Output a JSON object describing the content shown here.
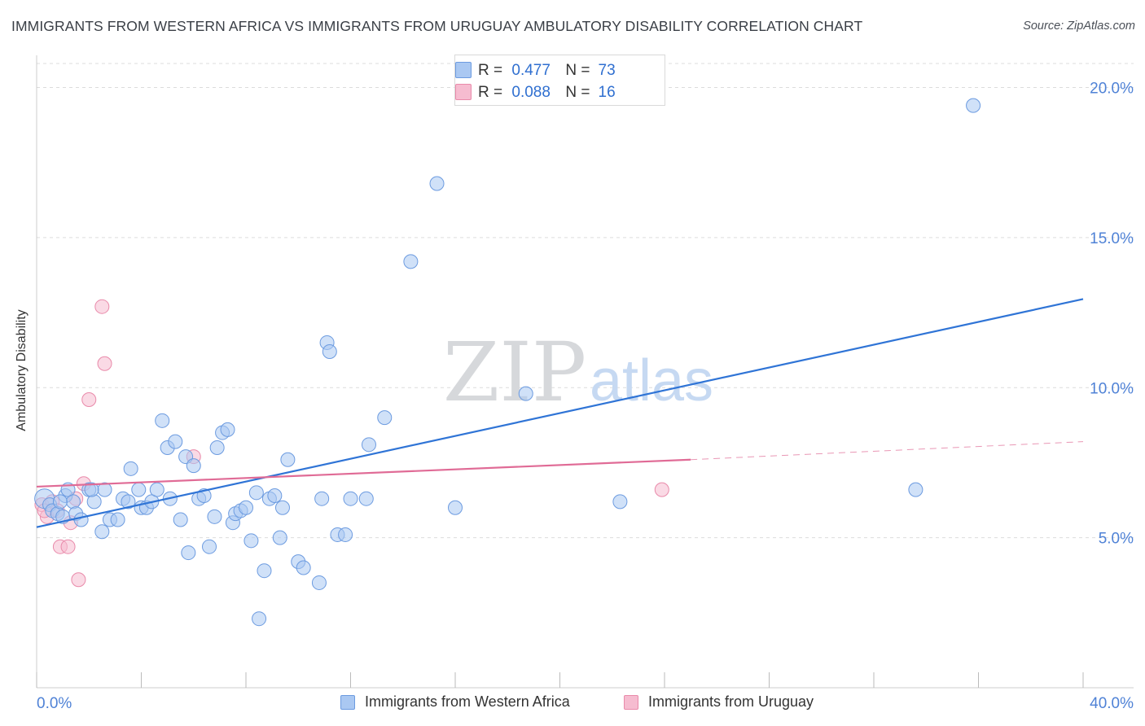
{
  "title": "IMMIGRANTS FROM WESTERN AFRICA VS IMMIGRANTS FROM URUGUAY AMBULATORY DISABILITY CORRELATION CHART",
  "source": "Source: ZipAtlas.com",
  "watermark": {
    "zip": "ZIP",
    "atlas": "atlas"
  },
  "colors": {
    "blue_fill": "#aac8f2",
    "blue_stroke": "#6c9be0",
    "blue_line": "#2f74d6",
    "pink_fill": "#f6bcd0",
    "pink_stroke": "#e98aaa",
    "pink_line": "#e06b96",
    "axis_text": "#4f82d6",
    "grid": "#dcdcdc"
  },
  "stats": {
    "r_label": "R =",
    "n_label": "N =",
    "series1": {
      "r": "0.477",
      "n": "73"
    },
    "series2": {
      "r": "0.088",
      "n": "16"
    }
  },
  "chart_data": {
    "type": "scatter",
    "title": "IMMIGRANTS FROM WESTERN AFRICA VS IMMIGRANTS FROM URUGUAY AMBULATORY DISABILITY CORRELATION CHART",
    "xlabel": "",
    "ylabel": "Ambulatory Disability",
    "xlim": [
      0,
      40
    ],
    "ylim": [
      0,
      20.8
    ],
    "x_tick_labels": [
      "0.0%",
      "40.0%"
    ],
    "y_ticks": [
      5,
      10,
      15,
      20
    ],
    "y_tick_labels": [
      "5.0%",
      "10.0%",
      "15.0%",
      "20.0%"
    ],
    "grid": true,
    "legend_position": "bottom",
    "series": [
      {
        "name": "Immigrants from Western Africa",
        "color": "#aac8f2",
        "trend": {
          "x": [
            0,
            40
          ],
          "y": [
            5.35,
            12.95
          ]
        },
        "points": [
          [
            0.3,
            6.3
          ],
          [
            0.5,
            6.1
          ],
          [
            0.6,
            5.9
          ],
          [
            0.8,
            5.8
          ],
          [
            1.0,
            5.7
          ],
          [
            1.1,
            6.4
          ],
          [
            1.2,
            6.6
          ],
          [
            1.4,
            6.2
          ],
          [
            1.5,
            5.8
          ],
          [
            1.7,
            5.6
          ],
          [
            2.0,
            6.6
          ],
          [
            2.2,
            6.2
          ],
          [
            2.5,
            5.2
          ],
          [
            2.6,
            6.6
          ],
          [
            2.8,
            5.6
          ],
          [
            3.1,
            5.6
          ],
          [
            3.3,
            6.3
          ],
          [
            3.5,
            6.2
          ],
          [
            3.6,
            7.3
          ],
          [
            3.9,
            6.6
          ],
          [
            4.0,
            6.0
          ],
          [
            4.2,
            6.0
          ],
          [
            4.4,
            6.2
          ],
          [
            4.6,
            6.6
          ],
          [
            4.8,
            8.9
          ],
          [
            5.0,
            8.0
          ],
          [
            5.1,
            6.3
          ],
          [
            5.3,
            8.2
          ],
          [
            5.5,
            5.6
          ],
          [
            5.7,
            7.7
          ],
          [
            5.8,
            4.5
          ],
          [
            6.0,
            7.4
          ],
          [
            6.2,
            6.3
          ],
          [
            6.4,
            6.4
          ],
          [
            6.6,
            4.7
          ],
          [
            6.8,
            5.7
          ],
          [
            6.9,
            8.0
          ],
          [
            7.1,
            8.5
          ],
          [
            7.3,
            8.6
          ],
          [
            7.5,
            5.5
          ],
          [
            7.6,
            5.8
          ],
          [
            7.8,
            5.9
          ],
          [
            8.0,
            6.0
          ],
          [
            8.2,
            4.9
          ],
          [
            8.4,
            6.5
          ],
          [
            8.7,
            3.9
          ],
          [
            8.9,
            6.3
          ],
          [
            9.1,
            6.4
          ],
          [
            9.3,
            5.0
          ],
          [
            9.4,
            6.0
          ],
          [
            9.6,
            7.6
          ],
          [
            10.0,
            4.2
          ],
          [
            10.2,
            4.0
          ],
          [
            10.8,
            3.5
          ],
          [
            10.9,
            6.3
          ],
          [
            11.1,
            11.5
          ],
          [
            11.2,
            11.2
          ],
          [
            11.5,
            5.1
          ],
          [
            11.8,
            5.1
          ],
          [
            12.0,
            6.3
          ],
          [
            12.6,
            6.3
          ],
          [
            12.7,
            8.1
          ],
          [
            13.3,
            9.0
          ],
          [
            14.3,
            14.2
          ],
          [
            15.3,
            16.8
          ],
          [
            16.0,
            6.0
          ],
          [
            18.7,
            9.8
          ],
          [
            22.3,
            6.2
          ],
          [
            33.6,
            6.6
          ],
          [
            35.8,
            19.4
          ],
          [
            8.5,
            2.3
          ],
          [
            2.1,
            6.6
          ],
          [
            0.9,
            6.2
          ]
        ]
      },
      {
        "name": "Immigrants from Uruguay",
        "color": "#f6bcd0",
        "trend": {
          "x": [
            0,
            25
          ],
          "y": [
            6.7,
            7.6
          ]
        },
        "trend_dashed": {
          "x": [
            25,
            40
          ],
          "y": [
            7.6,
            8.2
          ]
        },
        "points": [
          [
            0.2,
            6.1
          ],
          [
            0.4,
            5.7
          ],
          [
            0.6,
            6.2
          ],
          [
            0.8,
            5.9
          ],
          [
            0.9,
            4.7
          ],
          [
            1.2,
            4.7
          ],
          [
            1.3,
            5.5
          ],
          [
            1.5,
            6.3
          ],
          [
            1.6,
            3.6
          ],
          [
            1.8,
            6.8
          ],
          [
            2.0,
            9.6
          ],
          [
            2.5,
            12.7
          ],
          [
            2.6,
            10.8
          ],
          [
            6.0,
            7.7
          ],
          [
            23.9,
            6.6
          ],
          [
            0.3,
            5.9
          ]
        ]
      }
    ]
  }
}
